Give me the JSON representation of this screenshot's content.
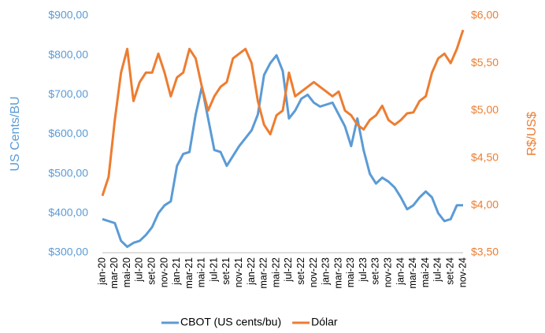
{
  "chart_data": {
    "type": "line",
    "y_label": "US Cents/BU",
    "y2_label": "R$/US$",
    "categories": [
      "jan-20",
      null,
      "mar-20",
      null,
      "mai-20",
      null,
      "jul-20",
      null,
      "set-20",
      null,
      "nov-20",
      null,
      "jan-21",
      null,
      "mar-21",
      null,
      "mai-21",
      null,
      "jul-21",
      null,
      "set-21",
      null,
      "nov-21",
      null,
      "jan-22",
      null,
      "mar-22",
      null,
      "mai-22",
      null,
      "jul-22",
      null,
      "set-22",
      null,
      "nov-22",
      null,
      "jan-23",
      null,
      "mar-23",
      null,
      "mai-23",
      null,
      "jul-23",
      null,
      "set-23",
      null,
      "nov-23",
      null,
      "jan-24",
      null,
      "mar-24",
      null,
      "mai-24",
      null,
      "jul-24",
      null,
      "set-24",
      null,
      "nov-24"
    ],
    "series": [
      {
        "name": "CBOT (US cents/bu)",
        "color": "#5b9bd5",
        "axis": "y",
        "values": [
          385,
          380,
          375,
          330,
          315,
          325,
          330,
          345,
          365,
          400,
          420,
          430,
          520,
          550,
          555,
          650,
          720,
          640,
          560,
          555,
          520,
          545,
          570,
          590,
          610,
          650,
          750,
          780,
          800,
          760,
          640,
          660,
          690,
          700,
          680,
          670,
          675,
          680,
          650,
          620,
          570,
          640,
          560,
          500,
          475,
          490,
          480,
          465,
          440,
          410,
          420,
          440,
          455,
          440,
          400,
          380,
          385,
          420,
          420
        ]
      },
      {
        "name": "Dólar",
        "color": "#ed7d31",
        "axis": "y2",
        "values": [
          4.1,
          4.3,
          4.9,
          5.4,
          5.65,
          5.1,
          5.3,
          5.4,
          5.4,
          5.6,
          5.4,
          5.15,
          5.35,
          5.4,
          5.65,
          5.55,
          5.25,
          5.0,
          5.15,
          5.25,
          5.3,
          5.55,
          5.6,
          5.65,
          5.5,
          5.1,
          4.85,
          4.75,
          4.95,
          5.0,
          5.4,
          5.15,
          5.2,
          5.25,
          5.3,
          5.25,
          5.2,
          5.15,
          5.2,
          5.0,
          4.95,
          4.85,
          4.8,
          4.9,
          4.95,
          5.05,
          4.9,
          4.85,
          4.9,
          4.97,
          4.98,
          5.1,
          5.15,
          5.4,
          5.55,
          5.6,
          5.5,
          5.65,
          5.85
        ]
      }
    ],
    "ylim": [
      300,
      900
    ],
    "yticks": [
      {
        "value": 300,
        "label": "$300,00"
      },
      {
        "value": 400,
        "label": "$400,00"
      },
      {
        "value": 500,
        "label": "$500,00"
      },
      {
        "value": 600,
        "label": "$600,00"
      },
      {
        "value": 700,
        "label": "$700,00"
      },
      {
        "value": 800,
        "label": "$800,00"
      },
      {
        "value": 900,
        "label": "$900,00"
      }
    ],
    "y2lim": [
      3.5,
      6
    ],
    "y2ticks": [
      {
        "value": 3.5,
        "label": "$3,50"
      },
      {
        "value": 4,
        "label": "$4,00"
      },
      {
        "value": 4.5,
        "label": "$4,50"
      },
      {
        "value": 5,
        "label": "$5,00"
      },
      {
        "value": 5.5,
        "label": "$5,50"
      },
      {
        "value": 6,
        "label": "$6,00"
      }
    ],
    "grid": false,
    "legend": "bottom"
  }
}
